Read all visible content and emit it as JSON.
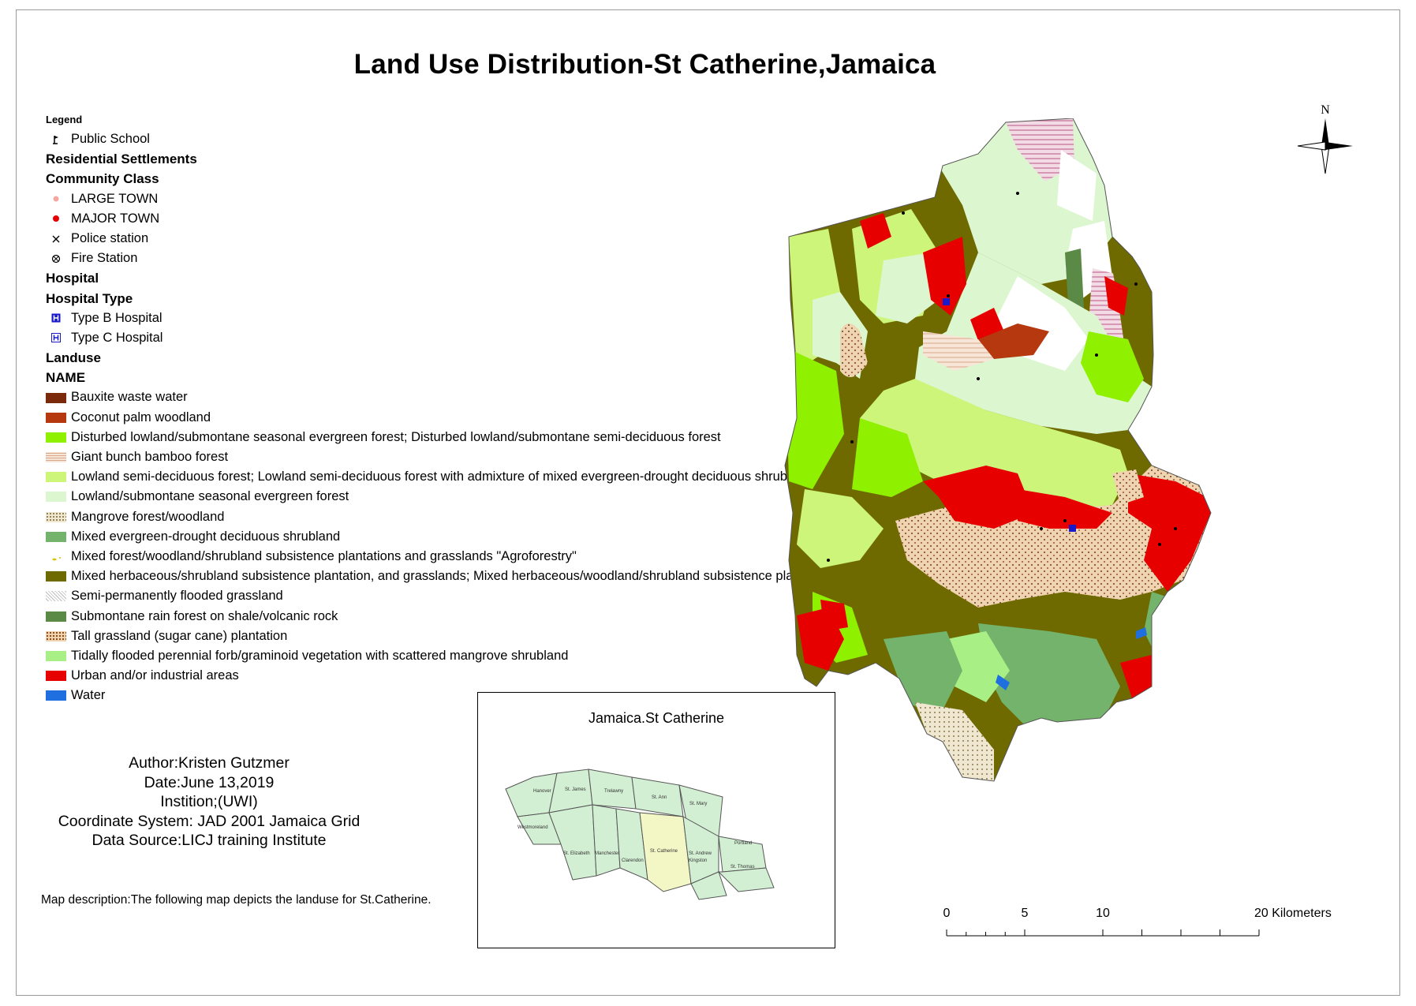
{
  "title": "Land Use Distribution-St Catherine,Jamaica",
  "legend": {
    "header": "Legend",
    "public_school": "Public School",
    "residential": "Residential Settlements",
    "community_class": "Community Class",
    "large_town": "LARGE TOWN",
    "major_town": "MAJOR TOWN",
    "police": "Police station",
    "fire": "Fire Station",
    "hospital": "Hospital",
    "hospital_type": "Hospital Type",
    "type_b": "Type B Hospital",
    "type_c": "Type C Hospital",
    "landuse": "Landuse",
    "name": "NAME",
    "classes": [
      {
        "label": "Bauxite waste water",
        "color": "#7a2a0a"
      },
      {
        "label": "Coconut palm woodland",
        "color": "#b5380f"
      },
      {
        "label": "Disturbed lowland/submontane seasonal evergreen forest; Disturbed lowland/submontane semi-deciduous forest",
        "color": "#8ff000"
      },
      {
        "label": "Giant bunch bamboo forest",
        "color": "#f5e2d2"
      },
      {
        "label": "Lowland semi-deciduous forest; Lowland semi-deciduous forest with admixture of mixed evergreen-drought deciduous shrubland",
        "color": "#cdf57a"
      },
      {
        "label": "Lowland/submontane seasonal evergreen forest",
        "color": "#dcf7cf"
      },
      {
        "label": "Mangrove forest/woodland",
        "color": "#d8d0a0"
      },
      {
        "label": "Mixed evergreen-drought deciduous shrubland",
        "color": "#73b36b"
      },
      {
        "label": "Mixed forest/woodland/shrubland subsistence plantations and grasslands \"Agroforestry\"",
        "color": "#ffffff"
      },
      {
        "label": "Mixed herbaceous/shrubland subsistence plantation, and grasslands; Mixed herbaceous/woodland/shrubland subsistence plantation",
        "color": "#6e6a00"
      },
      {
        "label": "Semi-permanently flooded grassland",
        "color": "#f3f3f3"
      },
      {
        "label": "Submontane rain forest on shale/volcanic rock",
        "color": "#5a8a45"
      },
      {
        "label": "Tall grassland (sugar cane) plantation",
        "color": "#e8c99a"
      },
      {
        "label": "Tidally flooded perennial forb/graminoid vegetation with scattered mangrove shrubland",
        "color": "#a8ef86"
      },
      {
        "label": "Urban and/or industrial areas",
        "color": "#e60000"
      },
      {
        "label": "Water",
        "color": "#1f6fe0"
      }
    ]
  },
  "inset": {
    "title": "Jamaica.St Catherine",
    "parishes": [
      "Hanover",
      "St. James",
      "Trelawny",
      "St. Ann",
      "St. Mary",
      "Westmoreland",
      "St. Elizabeth",
      "Manchester",
      "Clarendon",
      "St. Catherine",
      "St. Andrew",
      "Kingston",
      "Portland",
      "St. Thomas"
    ]
  },
  "meta": {
    "author": "Author:Kristen Gutzmer",
    "date": "Date:June 13,2019",
    "institution": "Instition;(UWI)",
    "coord": "Coordinate System: JAD 2001 Jamaica Grid",
    "source": "Data Source:LICJ training Institute"
  },
  "description": "Map description:The following map depicts the landuse for St.Catherine.",
  "north_label": "N",
  "scale": {
    "ticks": [
      "0",
      "5",
      "10",
      "20 Kilometers"
    ]
  }
}
